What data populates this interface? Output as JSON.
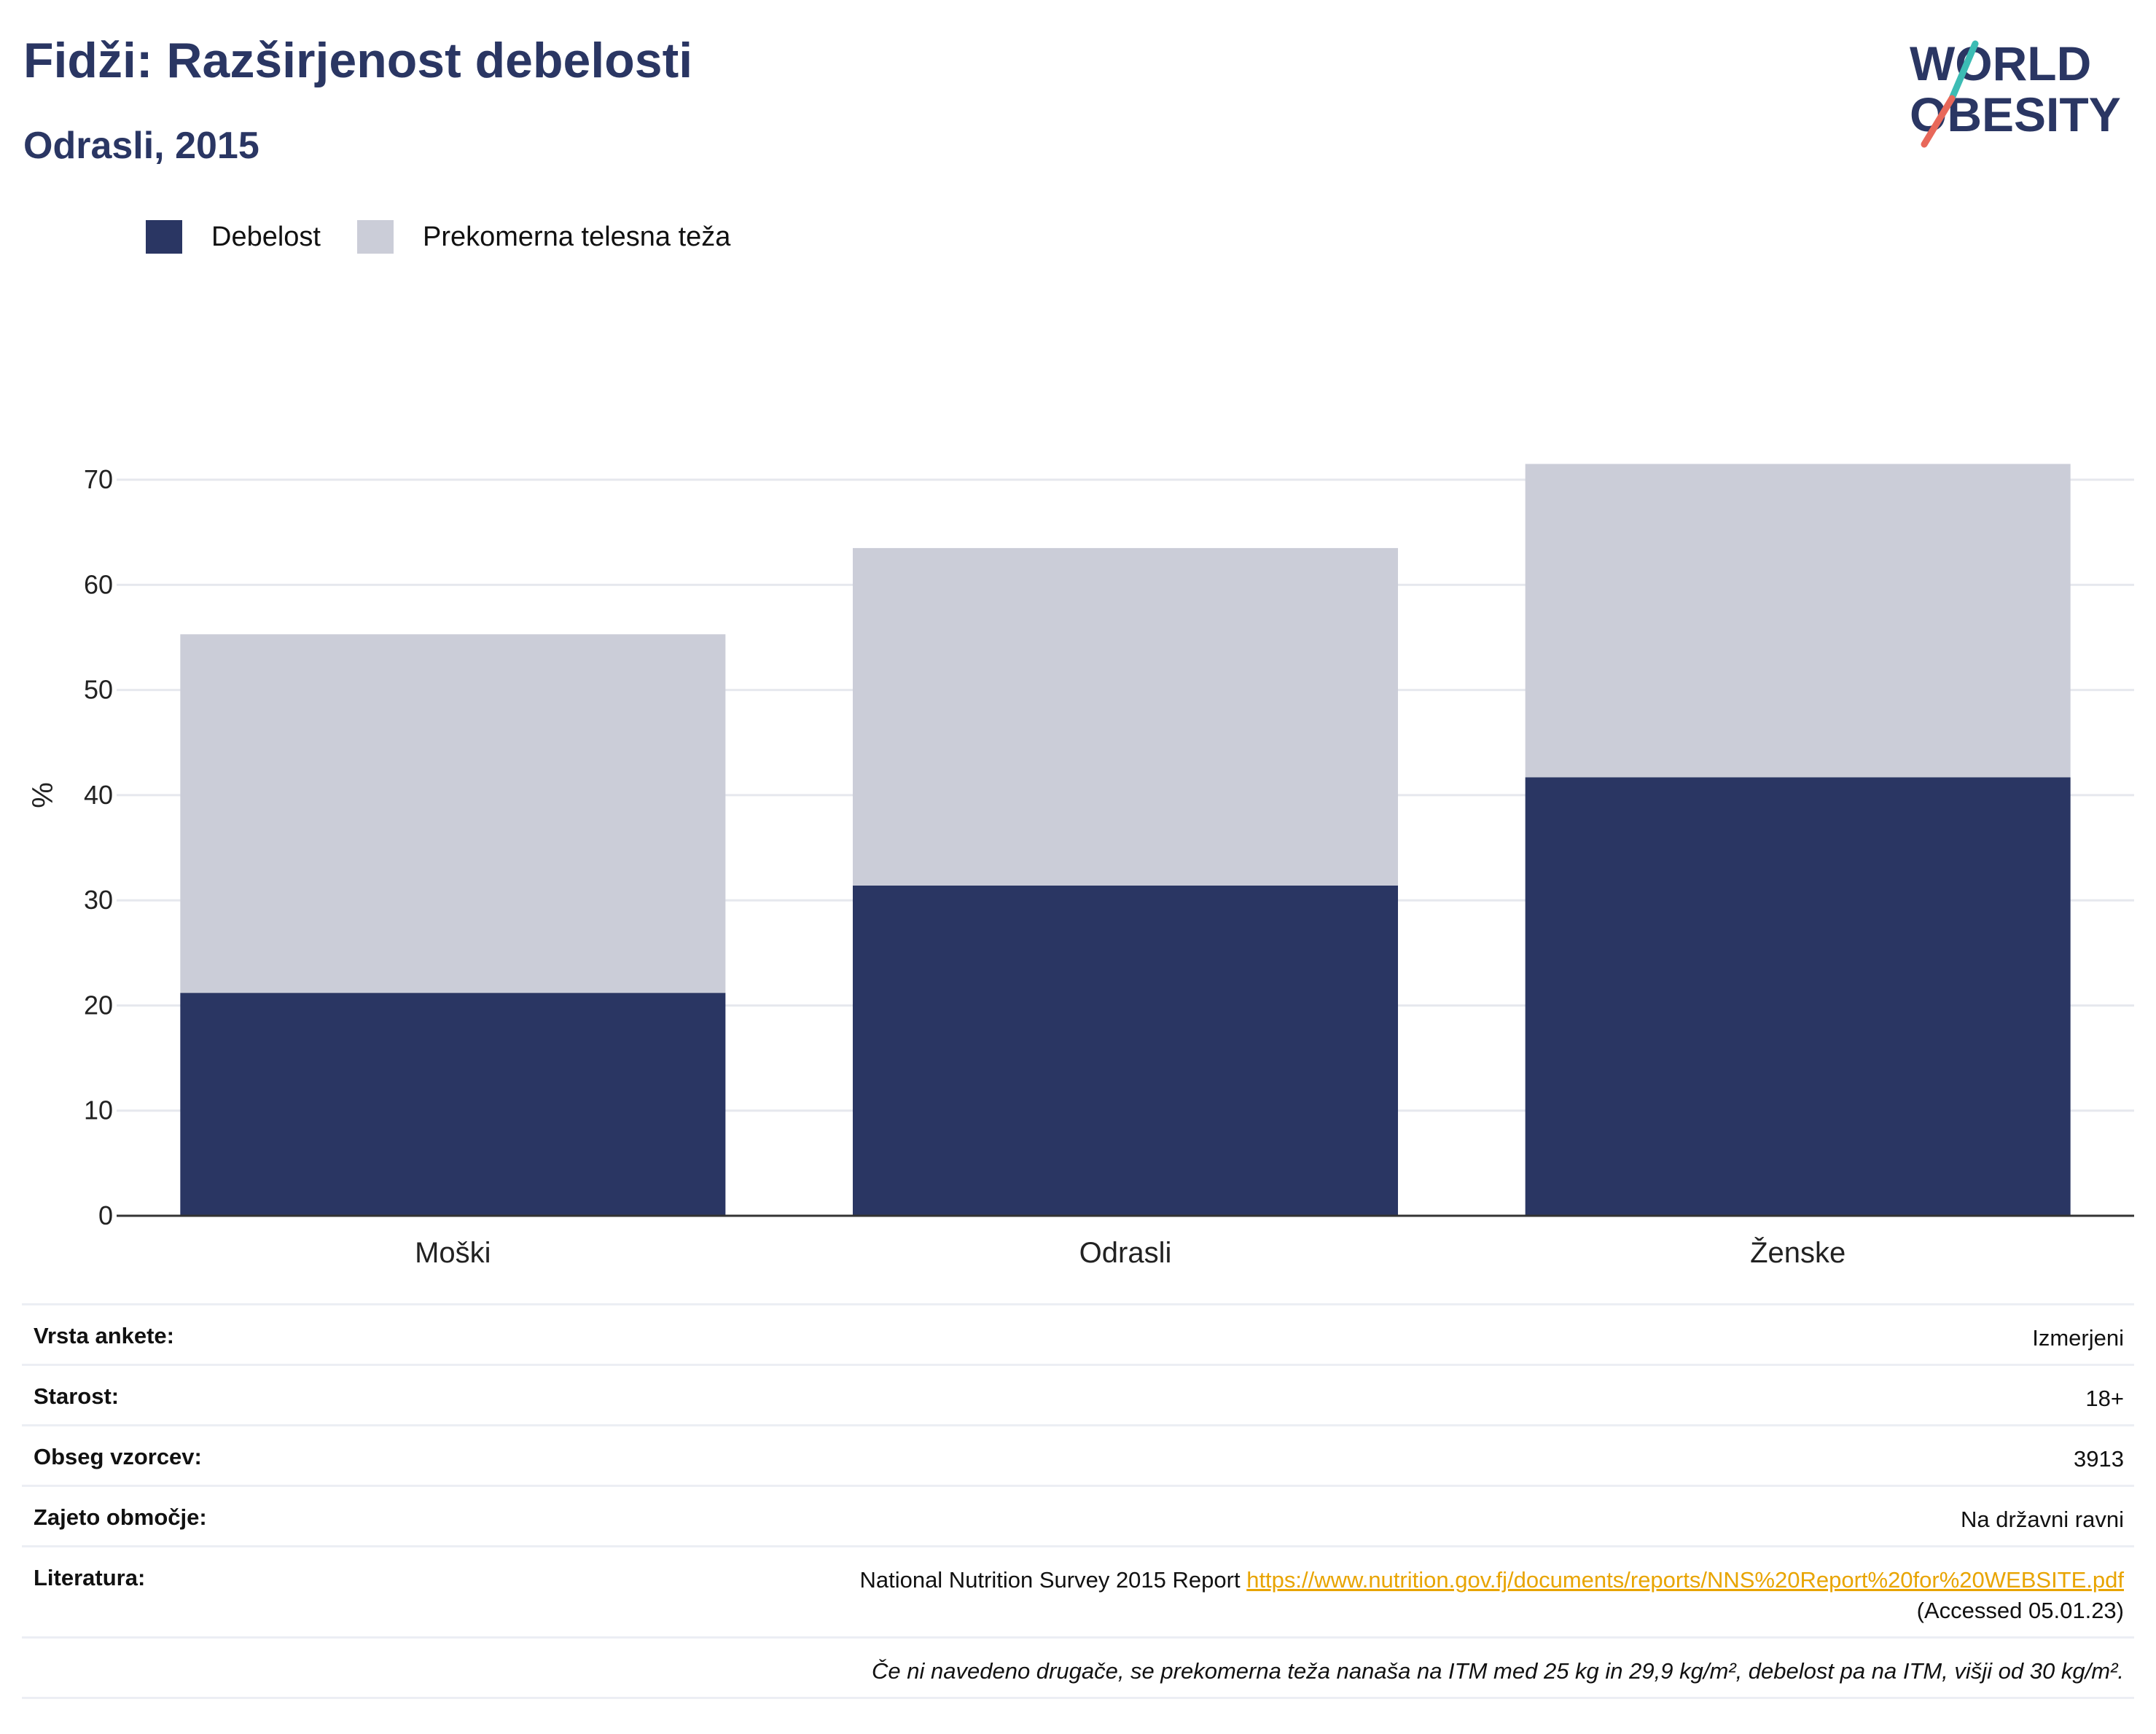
{
  "header": {
    "title": "Fidži: Razširjenost debelosti",
    "subtitle": "Odrasli, 2015"
  },
  "logo": {
    "line1": "WORLD",
    "line2": "OBESITY",
    "colors": {
      "text": "#2a3663",
      "slash_top": "#3cbcb4",
      "slash_bottom": "#e8685a"
    }
  },
  "legend": [
    {
      "label": "Debelost",
      "color": "#2a3663"
    },
    {
      "label": "Prekomerna telesna teža",
      "color": "#cbcdd8"
    }
  ],
  "chart_data": {
    "type": "bar",
    "stacked": true,
    "categories": [
      "Moški",
      "Odrasli",
      "Ženske"
    ],
    "series": [
      {
        "name": "Debelost",
        "values": [
          21.2,
          31.4,
          41.7
        ],
        "color": "#2a3663"
      },
      {
        "name": "Prekomerna telesna teža",
        "values": [
          34.1,
          32.1,
          29.8
        ],
        "color": "#cbcdd8"
      }
    ],
    "ylabel": "%",
    "ylim": [
      0,
      75
    ],
    "yticks": [
      0,
      10,
      20,
      30,
      40,
      50,
      60,
      70
    ],
    "grid": true,
    "legend_position": "top-left"
  },
  "info": {
    "rows": [
      {
        "key": "Vrsta ankete:",
        "value": "Izmerjeni"
      },
      {
        "key": "Starost:",
        "value": "18+"
      },
      {
        "key": "Obseg vzorcev:",
        "value": "3913"
      },
      {
        "key": "Zajeto območje:",
        "value": "Na državni ravni"
      }
    ],
    "literature": {
      "key": "Literatura:",
      "text": "National Nutrition Survey 2015 Report",
      "link": "https://www.nutrition.gov.fj/documents/reports/NNS%20Report%20for%20WEBSITE.pdf",
      "accessed": "(Accessed 05.01.23)"
    },
    "note": "Če ni navedeno drugače, se prekomerna teža nanaša na ITM med 25 kg in 29,9 kg/m², debelost pa na ITM, višji od 30 kg/m²."
  }
}
